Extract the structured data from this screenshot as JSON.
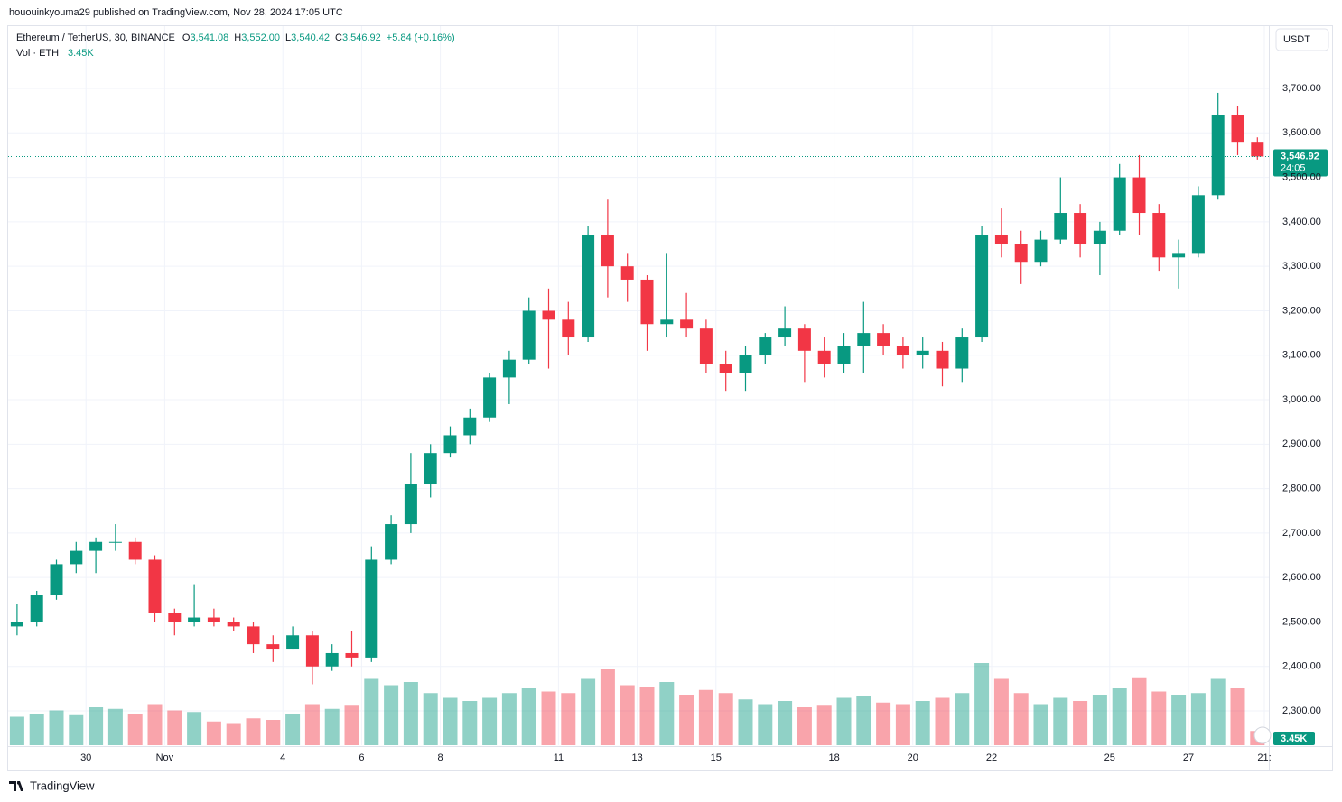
{
  "header": {
    "caption": "hououinkyouma29 published on TradingView.com, Nov 28, 2024 17:05 UTC",
    "brand": "TradingView"
  },
  "chart_data": {
    "type": "candlestick",
    "legend": {
      "symbol": "Ethereum / TetherUS, 30, BINANCE",
      "ohlc": [
        {
          "key": "O",
          "value": "3,541.08"
        },
        {
          "key": "H",
          "value": "3,552.00"
        },
        {
          "key": "L",
          "value": "3,540.42"
        },
        {
          "key": "C",
          "value": "3,546.92"
        }
      ],
      "change": "+5.84 (+0.16%)",
      "volume_label": "Vol · ETH",
      "volume": "3.45K"
    },
    "currency": "USDT",
    "last_price": {
      "value": 3546.92,
      "label": "3,546.92"
    },
    "countdown": "24:05",
    "up_color": "#089981",
    "down_color": "#f23645",
    "categories": [
      null,
      null,
      null,
      null,
      "30",
      null,
      null,
      null,
      "Nov",
      null,
      null,
      null,
      null,
      null,
      "4",
      null,
      null,
      null,
      "6",
      null,
      null,
      null,
      "8",
      null,
      null,
      null,
      null,
      null,
      "11",
      null,
      null,
      null,
      "13",
      null,
      null,
      null,
      "15",
      null,
      null,
      null,
      null,
      null,
      "18",
      null,
      null,
      null,
      "20",
      null,
      null,
      null,
      "22",
      null,
      null,
      null,
      null,
      null,
      "25",
      null,
      null,
      null,
      "27",
      null,
      null,
      "21:"
    ],
    "open": [
      2490,
      2500,
      2560,
      2630,
      2660,
      2680,
      2680,
      2640,
      2520,
      2500,
      2510,
      2500,
      2490,
      2450,
      2440,
      2470,
      2400,
      2430,
      2420,
      2640,
      2720,
      2810,
      2880,
      2920,
      2960,
      3050,
      3090,
      3200,
      3180,
      3140,
      3370,
      3300,
      3270,
      3170,
      3180,
      3160,
      3080,
      3060,
      3100,
      3140,
      3160,
      3110,
      3080,
      3120,
      3150,
      3120,
      3100,
      3110,
      3070,
      3140,
      3370,
      3350,
      3310,
      3360,
      3420,
      3350,
      3380,
      3500,
      3420,
      3320,
      3330,
      3460,
      3640,
      3580
    ],
    "high": [
      2540,
      2570,
      2640,
      2680,
      2690,
      2720,
      2690,
      2650,
      2530,
      2585,
      2530,
      2510,
      2500,
      2470,
      2490,
      2480,
      2450,
      2480,
      2670,
      2740,
      2880,
      2900,
      2940,
      2980,
      3060,
      3110,
      3230,
      3250,
      3220,
      3390,
      3450,
      3330,
      3280,
      3330,
      3240,
      3180,
      3110,
      3120,
      3150,
      3210,
      3170,
      3140,
      3150,
      3220,
      3170,
      3140,
      3140,
      3130,
      3160,
      3390,
      3430,
      3380,
      3380,
      3500,
      3440,
      3400,
      3530,
      3550,
      3440,
      3360,
      3480,
      3690,
      3660,
      3590
    ],
    "low": [
      2470,
      2490,
      2550,
      2610,
      2610,
      2660,
      2630,
      2500,
      2470,
      2490,
      2490,
      2480,
      2430,
      2410,
      2440,
      2360,
      2390,
      2400,
      2410,
      2630,
      2700,
      2780,
      2870,
      2900,
      2950,
      2990,
      3080,
      3070,
      3100,
      3130,
      3230,
      3220,
      3110,
      3140,
      3140,
      3060,
      3020,
      3020,
      3080,
      3120,
      3040,
      3050,
      3060,
      3060,
      3100,
      3070,
      3070,
      3030,
      3040,
      3130,
      3320,
      3260,
      3300,
      3350,
      3320,
      3280,
      3370,
      3370,
      3290,
      3250,
      3320,
      3450,
      3550,
      3540
    ],
    "close": [
      2500,
      2560,
      2630,
      2660,
      2680,
      2680,
      2640,
      2520,
      2500,
      2510,
      2500,
      2490,
      2450,
      2440,
      2470,
      2400,
      2430,
      2420,
      2640,
      2720,
      2810,
      2880,
      2920,
      2960,
      3050,
      3090,
      3200,
      3180,
      3140,
      3370,
      3300,
      3270,
      3170,
      3180,
      3160,
      3080,
      3060,
      3100,
      3140,
      3160,
      3110,
      3080,
      3120,
      3150,
      3120,
      3100,
      3110,
      3070,
      3140,
      3370,
      3350,
      3310,
      3360,
      3420,
      3350,
      3380,
      3500,
      3420,
      3320,
      3330,
      3460,
      3640,
      3580,
      3546.92
    ],
    "volume": [
      180000,
      200000,
      220000,
      190000,
      240000,
      230000,
      200000,
      260000,
      220000,
      210000,
      150000,
      140000,
      170000,
      160000,
      200000,
      260000,
      230000,
      250000,
      420000,
      380000,
      400000,
      330000,
      300000,
      280000,
      300000,
      330000,
      360000,
      340000,
      330000,
      420000,
      480000,
      380000,
      370000,
      400000,
      320000,
      350000,
      330000,
      290000,
      260000,
      280000,
      240000,
      250000,
      300000,
      310000,
      270000,
      260000,
      280000,
      300000,
      330000,
      520000,
      420000,
      330000,
      260000,
      300000,
      280000,
      320000,
      360000,
      430000,
      340000,
      320000,
      330000,
      420000,
      360000,
      90000
    ],
    "volume_lim": [
      0,
      800000
    ],
    "ylim": [
      2223,
      3838
    ],
    "yticks": [
      {
        "value": 2300,
        "label": "2,300.00"
      },
      {
        "value": 2400,
        "label": "2,400.00"
      },
      {
        "value": 2500,
        "label": "2,500.00"
      },
      {
        "value": 2600,
        "label": "2,600.00"
      },
      {
        "value": 2700,
        "label": "2,700.00"
      },
      {
        "value": 2800,
        "label": "2,800.00"
      },
      {
        "value": 2900,
        "label": "2,900.00"
      },
      {
        "value": 3000,
        "label": "3,000.00"
      },
      {
        "value": 3100,
        "label": "3,100.00"
      },
      {
        "value": 3200,
        "label": "3,200.00"
      },
      {
        "value": 3300,
        "label": "3,300.00"
      },
      {
        "value": 3400,
        "label": "3,400.00"
      },
      {
        "value": 3500,
        "label": "3,500.00"
      },
      {
        "value": 3600,
        "label": "3,600.00"
      },
      {
        "value": 3700,
        "label": "3,700.00"
      }
    ],
    "grid": true
  }
}
